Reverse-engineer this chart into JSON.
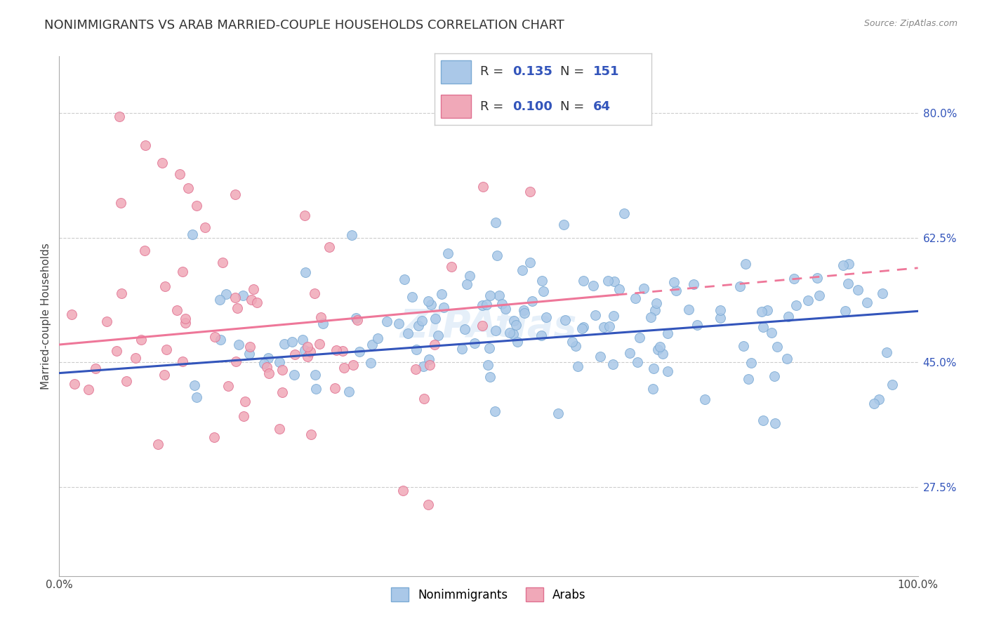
{
  "title": "NONIMMIGRANTS VS ARAB MARRIED-COUPLE HOUSEHOLDS CORRELATION CHART",
  "source": "Source: ZipAtlas.com",
  "ylabel": "Married-couple Households",
  "xlim": [
    0.0,
    1.0
  ],
  "ylim": [
    0.15,
    0.88
  ],
  "ytick_values": [
    0.275,
    0.45,
    0.625,
    0.8
  ],
  "ytick_labels": [
    "27.5%",
    "45.0%",
    "62.5%",
    "80.0%"
  ],
  "grid_color": "#cccccc",
  "background_color": "#ffffff",
  "line_blue": "#3355bb",
  "line_pink": "#ee7799",
  "legend_R_blue": "0.135",
  "legend_N_blue": "151",
  "legend_R_pink": "0.100",
  "legend_N_pink": "64",
  "label_blue": "Nonimmigrants",
  "label_pink": "Arabs",
  "watermark": "ZIPAtlas",
  "blue_trend_start_y": 0.435,
  "blue_trend_end_y": 0.522,
  "pink_trend_start_y": 0.475,
  "pink_trend_end_x": 0.65,
  "pink_trend_end_y": 0.545,
  "title_fontsize": 13,
  "axis_label_fontsize": 11,
  "tick_fontsize": 11,
  "legend_fontsize": 13,
  "scatter_size": 100
}
